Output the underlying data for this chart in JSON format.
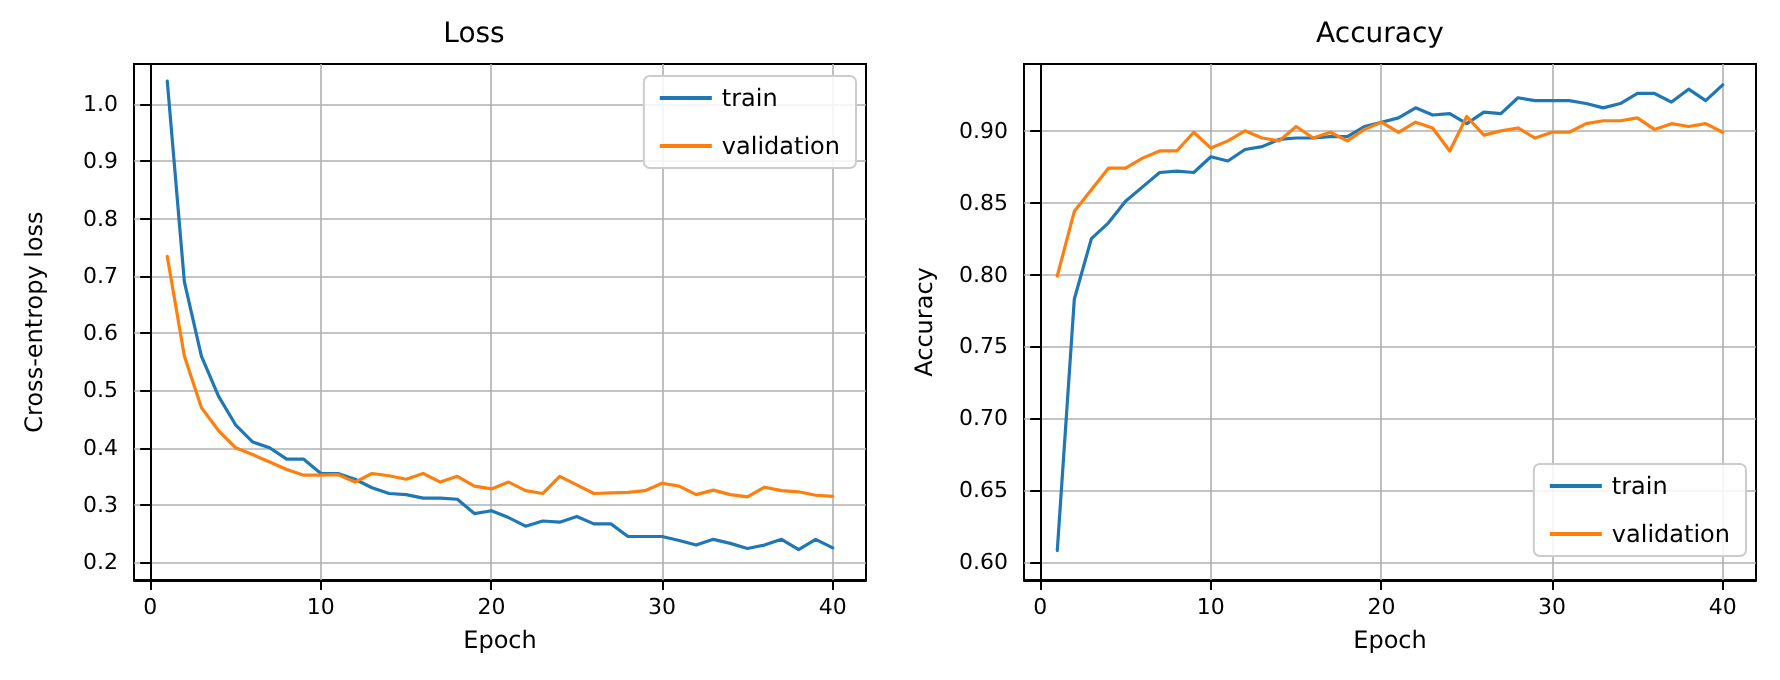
{
  "chart_data": [
    {
      "type": "line",
      "title": "Loss",
      "xlabel": "Epoch",
      "ylabel": "Cross-entropy loss",
      "x": [
        1,
        2,
        3,
        4,
        5,
        6,
        7,
        8,
        9,
        10,
        11,
        12,
        13,
        14,
        15,
        16,
        17,
        18,
        19,
        20,
        21,
        22,
        23,
        24,
        25,
        26,
        27,
        28,
        29,
        30,
        31,
        32,
        33,
        34,
        35,
        36,
        37,
        38,
        39,
        40
      ],
      "series": [
        {
          "name": "train",
          "color": "#1f77b4",
          "values": [
            1.04,
            0.69,
            0.56,
            0.49,
            0.44,
            0.41,
            0.4,
            0.38,
            0.38,
            0.355,
            0.355,
            0.345,
            0.33,
            0.32,
            0.318,
            0.312,
            0.312,
            0.31,
            0.285,
            0.29,
            0.278,
            0.263,
            0.272,
            0.27,
            0.28,
            0.267,
            0.267,
            0.245,
            0.245,
            0.245,
            0.238,
            0.23,
            0.24,
            0.233,
            0.224,
            0.23,
            0.24,
            0.222,
            0.24,
            0.225
          ]
        },
        {
          "name": "validation",
          "color": "#ff7f0e",
          "values": [
            0.734,
            0.56,
            0.47,
            0.43,
            0.4,
            0.388,
            0.375,
            0.362,
            0.352,
            0.352,
            0.353,
            0.34,
            0.355,
            0.351,
            0.345,
            0.355,
            0.34,
            0.35,
            0.333,
            0.328,
            0.34,
            0.325,
            0.32,
            0.35,
            0.335,
            0.32,
            0.321,
            0.322,
            0.325,
            0.338,
            0.333,
            0.318,
            0.326,
            0.318,
            0.314,
            0.331,
            0.325,
            0.323,
            0.317,
            0.315
          ]
        }
      ],
      "xlim": [
        -0.95,
        41.95
      ],
      "xticks": [
        0,
        10,
        20,
        30,
        40
      ],
      "ylim": [
        0.169,
        1.07
      ],
      "yticks": [
        0.2,
        0.3,
        0.4,
        0.5,
        0.6,
        0.7,
        0.8,
        0.9,
        {
          "value": 1.0,
          "label": "1.0"
        }
      ],
      "grid": true,
      "legend": "top right",
      "marker": "none",
      "line_style": "solid"
    },
    {
      "type": "line",
      "title": "Accuracy",
      "xlabel": "Epoch",
      "ylabel": "Accuracy",
      "x": [
        1,
        2,
        3,
        4,
        5,
        6,
        7,
        8,
        9,
        10,
        11,
        12,
        13,
        14,
        15,
        16,
        17,
        18,
        19,
        20,
        21,
        22,
        23,
        24,
        25,
        26,
        27,
        28,
        29,
        30,
        31,
        32,
        33,
        34,
        35,
        36,
        37,
        38,
        39,
        40
      ],
      "series": [
        {
          "name": "train",
          "color": "#1f77b4",
          "values": [
            0.608,
            0.783,
            0.825,
            0.836,
            0.851,
            0.861,
            0.871,
            0.872,
            0.871,
            0.882,
            0.879,
            0.887,
            0.889,
            0.894,
            0.895,
            0.895,
            0.896,
            0.896,
            0.903,
            0.906,
            0.909,
            0.916,
            0.911,
            0.912,
            0.905,
            0.913,
            0.912,
            0.923,
            0.921,
            0.921,
            0.921,
            0.919,
            0.916,
            0.919,
            0.926,
            0.926,
            0.92,
            0.929,
            0.921,
            0.932
          ]
        },
        {
          "name": "validation",
          "color": "#ff7f0e",
          "values": [
            0.799,
            0.844,
            0.859,
            0.874,
            0.874,
            0.881,
            0.886,
            0.886,
            0.899,
            0.888,
            0.893,
            0.9,
            0.895,
            0.893,
            0.903,
            0.895,
            0.899,
            0.893,
            0.901,
            0.906,
            0.899,
            0.906,
            0.902,
            0.886,
            0.91,
            0.897,
            0.9,
            0.902,
            0.895,
            0.899,
            0.899,
            0.905,
            0.907,
            0.907,
            0.909,
            0.901,
            0.905,
            0.903,
            0.905,
            0.899
          ]
        }
      ],
      "xlim": [
        -0.95,
        41.95
      ],
      "xticks": [
        0,
        10,
        20,
        30,
        40
      ],
      "ylim": [
        0.5875,
        0.9465
      ],
      "yticks": [
        {
          "value": 0.6,
          "label": "0.60"
        },
        {
          "value": 0.65,
          "label": "0.65"
        },
        {
          "value": 0.7,
          "label": "0.70"
        },
        {
          "value": 0.75,
          "label": "0.75"
        },
        {
          "value": 0.8,
          "label": "0.80"
        },
        {
          "value": 0.85,
          "label": "0.85"
        },
        {
          "value": 0.9,
          "label": "0.90"
        }
      ],
      "grid": true,
      "legend": "bottom right",
      "marker": "none",
      "line_style": "solid"
    }
  ]
}
